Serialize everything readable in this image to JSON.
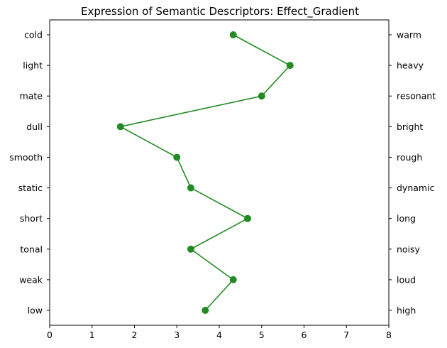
{
  "chart_data": {
    "type": "line",
    "title": "Expression of Semantic Descriptors: Effect_Gradient",
    "xlabel": "",
    "ylabel": "",
    "xlim": [
      0,
      8
    ],
    "xticks": [
      "0",
      "1",
      "2",
      "3",
      "4",
      "5",
      "6",
      "7",
      "8"
    ],
    "left_labels": [
      "cold",
      "light",
      "mate",
      "dull",
      "smooth",
      "static",
      "short",
      "tonal",
      "weak",
      "low"
    ],
    "right_labels": [
      "warm",
      "heavy",
      "resonant",
      "bright",
      "rough",
      "dynamic",
      "long",
      "noisy",
      "loud",
      "high"
    ],
    "series": [
      {
        "values": [
          4.33,
          5.67,
          5.0,
          1.67,
          3.0,
          3.33,
          4.67,
          3.33,
          4.33,
          3.67
        ]
      }
    ],
    "line_color": "#228b22",
    "grid": false
  }
}
